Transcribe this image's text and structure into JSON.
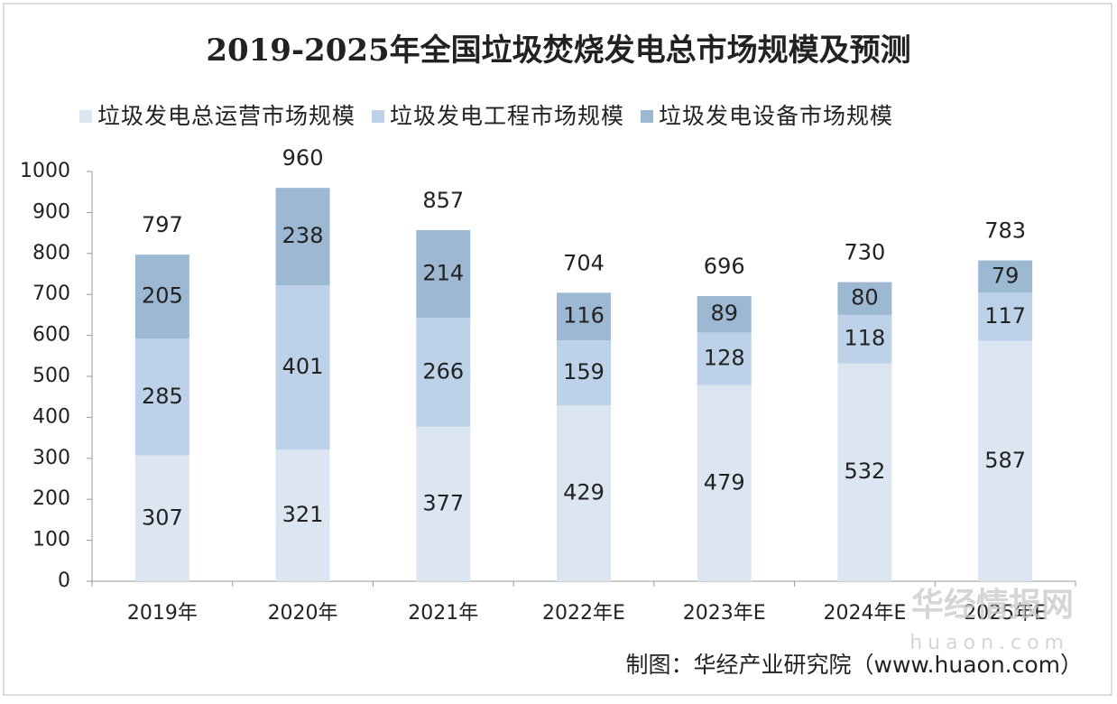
{
  "chart_data": {
    "type": "stacked_bar",
    "title": "2019-2025年全国垃圾焚烧发电总市场规模及预测",
    "categories": [
      "2019年",
      "2020年",
      "2021年",
      "2022年E",
      "2023年E",
      "2024年E",
      "2025年E"
    ],
    "series": [
      {
        "name": "垃圾发电总运营市场规模",
        "color": "#dbe6f2",
        "values": [
          307,
          321,
          377,
          429,
          479,
          532,
          587
        ]
      },
      {
        "name": "垃圾发电工程市场规模",
        "color": "#bdd2e8",
        "values": [
          285,
          401,
          266,
          159,
          128,
          118,
          117
        ]
      },
      {
        "name": "垃圾发电设备市场规模",
        "color": "#9db8d2",
        "values": [
          205,
          238,
          214,
          116,
          89,
          80,
          79
        ]
      }
    ],
    "totals": [
      797,
      960,
      857,
      704,
      696,
      730,
      783
    ],
    "ylim": [
      0,
      1000
    ],
    "yticks": [
      0,
      100,
      200,
      300,
      400,
      500,
      600,
      700,
      800,
      900,
      1000
    ],
    "source": "制图：华经产业研究院（www.huaon.com）",
    "watermark": [
      "华经情报网",
      "huaon.com"
    ]
  }
}
